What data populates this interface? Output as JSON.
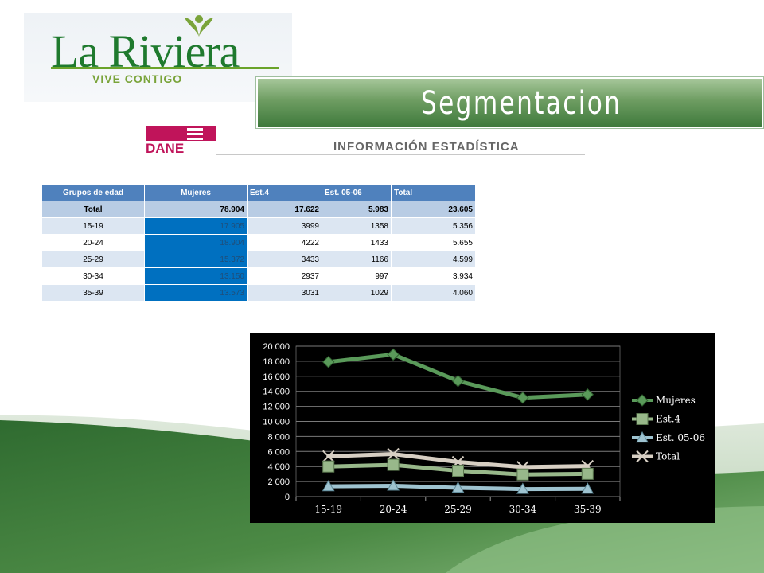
{
  "logo": {
    "name": "La Riviera",
    "tagline": "VIVE CONTIGO"
  },
  "banner": {
    "title": "Segmentacion"
  },
  "source": {
    "org": "DANE",
    "subtitle": "INFORMACIÓN ESTADÍSTICA"
  },
  "table": {
    "headers": [
      "Grupos de edad",
      "Mujeres",
      "Est.4",
      "Est. 05-06",
      "Total"
    ],
    "rows": [
      [
        "Total",
        "78.904",
        "17.622",
        "5.983",
        "23.605"
      ],
      [
        "15-19",
        "17.905",
        "3999",
        "1358",
        "5.356"
      ],
      [
        "20-24",
        "18.904",
        "4222",
        "1433",
        "5.655"
      ],
      [
        "25-29",
        "15.372",
        "3433",
        "1166",
        "4.599"
      ],
      [
        "30-34",
        "13.150",
        "2937",
        "997",
        "3.934"
      ],
      [
        "35-39",
        "13.573",
        "3031",
        "1029",
        "4.060"
      ]
    ]
  },
  "chart_data": {
    "type": "line",
    "categories": [
      "15-19",
      "20-24",
      "25-29",
      "30-34",
      "35-39"
    ],
    "series": [
      {
        "name": "Mujeres",
        "values": [
          17905,
          18904,
          15372,
          13150,
          13573
        ],
        "color": "#5a9a5a",
        "marker": "diamond"
      },
      {
        "name": "Est.4",
        "values": [
          3999,
          4222,
          3433,
          2937,
          3031
        ],
        "color": "#98b88a",
        "marker": "square"
      },
      {
        "name": "Est. 05-06",
        "values": [
          1358,
          1433,
          1166,
          997,
          1029
        ],
        "color": "#9ec3d0",
        "marker": "triangle"
      },
      {
        "name": "Total",
        "values": [
          5356,
          5655,
          4599,
          3934,
          4060
        ],
        "color": "#d7cfc3",
        "marker": "x"
      }
    ],
    "ylim": [
      0,
      20000
    ],
    "ytick_labels": [
      "0",
      "2 000",
      "4 000",
      "6 000",
      "8 000",
      "10 000",
      "12 000",
      "14 000",
      "16 000",
      "18 000",
      "20 000"
    ],
    "grid": true,
    "legend": "right",
    "background": "#000000"
  }
}
